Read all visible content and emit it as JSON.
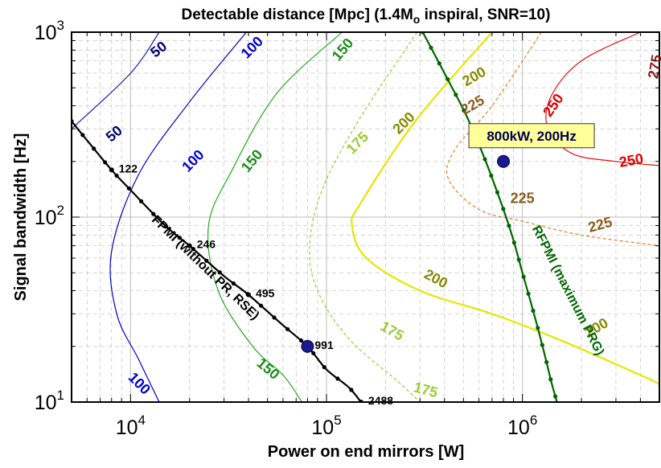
{
  "chart_data": {
    "type": "line",
    "title": "Detectable distance  [Mpc]  (1.4M",
    "title_sub": "o",
    "title_tail": " inspiral, SNR=10)",
    "xlabel": "Power on end mirrors  [W]",
    "ylabel": "Signal bandwidth  [Hz]",
    "x_scale": "log",
    "y_scale": "log",
    "xlim": [
      5000,
      5000000
    ],
    "ylim": [
      10,
      1000
    ],
    "x_ticks": [
      {
        "value": 10000,
        "base": "10",
        "exp": "4"
      },
      {
        "value": 100000,
        "base": "10",
        "exp": "5"
      },
      {
        "value": 1000000,
        "base": "10",
        "exp": "6"
      }
    ],
    "y_ticks": [
      {
        "value": 10,
        "base": "10",
        "exp": "1"
      },
      {
        "value": 100,
        "base": "10",
        "exp": "2"
      },
      {
        "value": 1000,
        "base": "10",
        "exp": "3"
      }
    ],
    "grid": true,
    "contours": [
      {
        "level": 50,
        "color": "#1a1aa6",
        "style": "solid",
        "points": [
          [
            5000,
            300
          ],
          [
            10000,
            600
          ],
          [
            14000,
            1000
          ]
        ]
      },
      {
        "level": 100,
        "color": "#0000c8",
        "style": "solid",
        "points": [
          [
            39000,
            1000
          ],
          [
            20000,
            420
          ],
          [
            11000,
            170
          ],
          [
            8000,
            65
          ],
          [
            8500,
            30
          ],
          [
            11000,
            17
          ],
          [
            14000,
            10
          ]
        ]
      },
      {
        "level": 150,
        "color": "#22aa22",
        "style": "solid",
        "points": [
          [
            120000,
            1000
          ],
          [
            56000,
            470
          ],
          [
            33000,
            180
          ],
          [
            25000,
            90
          ],
          [
            28000,
            40
          ],
          [
            42000,
            20
          ],
          [
            60000,
            14
          ],
          [
            75000,
            10
          ]
        ]
      },
      {
        "level": 175,
        "color": "#99cc33",
        "style": "dashed",
        "points": [
          [
            290000,
            1000
          ],
          [
            145000,
            330
          ],
          [
            95000,
            140
          ],
          [
            82000,
            70
          ],
          [
            90000,
            40
          ],
          [
            130000,
            22
          ],
          [
            230000,
            13
          ],
          [
            300000,
            10
          ]
        ]
      },
      {
        "level": 200,
        "color": "#e6e600",
        "style": "solid",
        "points": [
          [
            700000,
            1000
          ],
          [
            290000,
            340
          ],
          [
            150000,
            120
          ],
          [
            135000,
            90
          ],
          [
            160000,
            60
          ],
          [
            300000,
            40
          ],
          [
            700000,
            30
          ],
          [
            1500000,
            22
          ],
          [
            4000000,
            14
          ],
          [
            5000000,
            12.5
          ]
        ]
      },
      {
        "level": 225,
        "color": "#e08020",
        "style": "dashed",
        "points": [
          [
            1250000,
            1000
          ],
          [
            700000,
            400
          ],
          [
            450000,
            230
          ],
          [
            420000,
            160
          ],
          [
            600000,
            110
          ],
          [
            1000000,
            95
          ],
          [
            2000000,
            80
          ],
          [
            5000000,
            70
          ]
        ]
      },
      {
        "level": 250,
        "color": "#e01010",
        "style": "solid",
        "points": [
          [
            4000000,
            1000
          ],
          [
            2000000,
            700
          ],
          [
            1400000,
            450
          ],
          [
            1350000,
            300
          ],
          [
            1800000,
            220
          ],
          [
            3000000,
            200
          ],
          [
            5000000,
            190
          ]
        ]
      }
    ],
    "contour_labels": [
      {
        "text": "50",
        "x": 8300,
        "y": 280,
        "color": "#000070",
        "rot": -40
      },
      {
        "text": "50",
        "x": 14000,
        "y": 800,
        "color": "#000070",
        "rot": -38
      },
      {
        "text": "100",
        "x": 42000,
        "y": 820,
        "color": "#0000cc",
        "rot": -45
      },
      {
        "text": "100",
        "x": 21000,
        "y": 200,
        "color": "#0000cc",
        "rot": -45
      },
      {
        "text": "100",
        "x": 11000,
        "y": 12.5,
        "color": "#0000cc",
        "rot": 45
      },
      {
        "text": "150",
        "x": 122000,
        "y": 800,
        "color": "#1a8c1a",
        "rot": -50
      },
      {
        "text": "150",
        "x": 42000,
        "y": 200,
        "color": "#1a8c1a",
        "rot": -50
      },
      {
        "text": "150",
        "x": 50000,
        "y": 15,
        "color": "#1a8c1a",
        "rot": 40
      },
      {
        "text": "175",
        "x": 145000,
        "y": 250,
        "color": "#99cc33",
        "rot": -45
      },
      {
        "text": "175",
        "x": 215000,
        "y": 24,
        "color": "#99cc33",
        "rot": 30
      },
      {
        "text": "175",
        "x": 320000,
        "y": 11.5,
        "color": "#99cc33",
        "rot": 15
      },
      {
        "text": "200",
        "x": 570000,
        "y": 570,
        "color": "#888800",
        "rot": -30
      },
      {
        "text": "200",
        "x": 250000,
        "y": 320,
        "color": "#888800",
        "rot": -45
      },
      {
        "text": "200",
        "x": 360000,
        "y": 46,
        "color": "#888800",
        "rot": 28
      },
      {
        "text": "200",
        "x": 2400000,
        "y": 25,
        "color": "#888800",
        "rot": -30
      },
      {
        "text": "225",
        "x": 560000,
        "y": 400,
        "color": "#8b5a1a",
        "rot": -30
      },
      {
        "text": "225",
        "x": 1000000,
        "y": 125,
        "color": "#8b5a1a",
        "rot": 0
      },
      {
        "text": "225",
        "x": 2500000,
        "y": 90,
        "color": "#8b5a1a",
        "rot": -15
      },
      {
        "text": "250",
        "x": 1450000,
        "y": 400,
        "color": "#e00000",
        "rot": -55
      },
      {
        "text": "250",
        "x": 3600000,
        "y": 200,
        "color": "#e00000",
        "rot": -10
      },
      {
        "text": "275",
        "x": 4800000,
        "y": 650,
        "color": "#8b1a1a",
        "rot": -80
      }
    ],
    "series": [
      {
        "name": "FPMI (without PR, RSE)",
        "color": "#000000",
        "x": [
          5000,
          6000,
          8000,
          10000,
          15000,
          20000,
          30000,
          40000,
          60000,
          80000,
          100000,
          130000,
          150000
        ],
        "y": [
          330,
          260,
          180,
          140,
          90,
          70,
          48,
          38,
          26,
          20,
          15,
          12,
          10
        ],
        "marked_points": [
          {
            "x": 8000,
            "y": 180,
            "label": "122"
          },
          {
            "x": 20000,
            "y": 70,
            "label": "246"
          },
          {
            "x": 40000,
            "y": 38,
            "label": "495"
          },
          {
            "x": 80000,
            "y": 20,
            "label": "991"
          },
          {
            "x": 150000,
            "y": 10,
            "label": "2488"
          }
        ]
      },
      {
        "name": "RFPMI (maximum PRG)",
        "color": "#006600",
        "x": [
          310000,
          400000,
          520000,
          650000,
          800000,
          900000,
          1000000,
          1100000,
          1200000,
          1300000,
          1400000,
          1500000
        ],
        "y": [
          1000,
          600,
          350,
          200,
          110,
          75,
          50,
          35,
          25,
          18,
          13,
          10
        ]
      }
    ],
    "annotations": [
      {
        "text": "FPMI (without PR, RSE)",
        "x": 24000,
        "y": 53,
        "rot": 44,
        "color": "#000000"
      },
      {
        "text": "RFPMI (maximum PRG)",
        "x": 1700000,
        "y": 40,
        "rot": 63,
        "color": "#006600"
      }
    ],
    "highlight_points": [
      {
        "x": 800000,
        "y": 200,
        "label": "800kW, 200Hz"
      },
      {
        "x": 80000,
        "y": 20
      }
    ]
  }
}
